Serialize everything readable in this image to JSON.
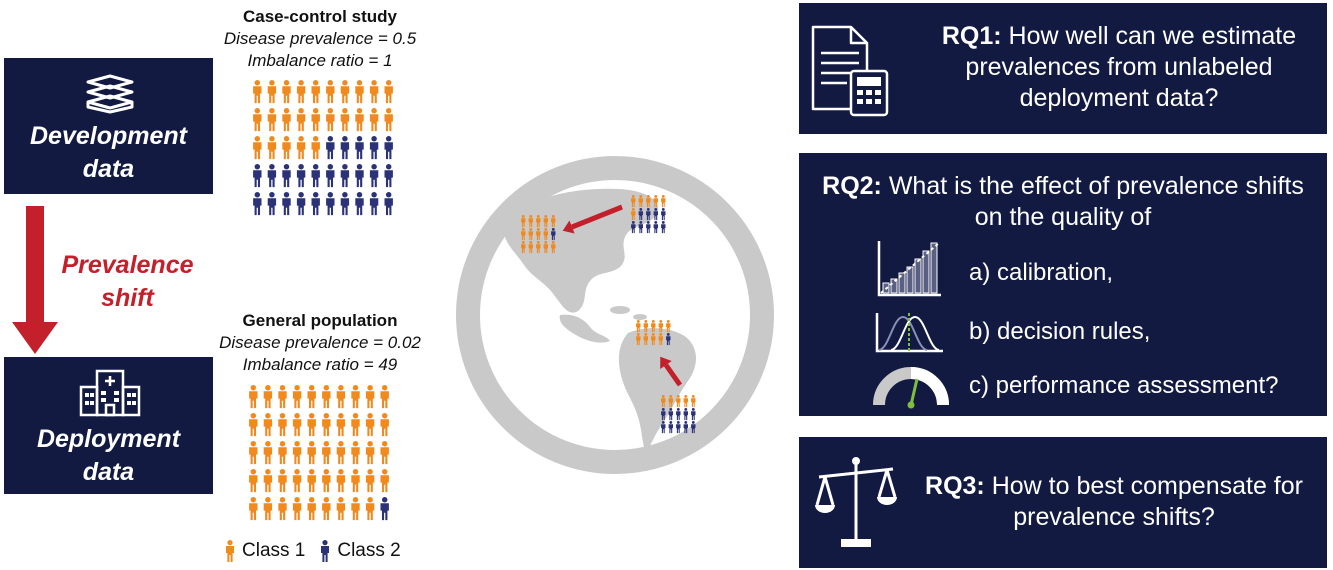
{
  "left": {
    "development_box": {
      "label_line1": "Development",
      "label_line2": "data",
      "icon": "books-icon"
    },
    "shift": {
      "line1": "Prevalence",
      "line2": "shift"
    },
    "deployment_box": {
      "label_line1": "Deployment",
      "label_line2": "data",
      "icon": "hospital-icon"
    }
  },
  "case_control": {
    "title": "Case-control study",
    "prevalence": "Disease prevalence = 0.5",
    "imbalance": "Imbalance ratio = 1",
    "class1_count": 25,
    "class2_count": 25
  },
  "general_population": {
    "title": "General population",
    "prevalence": "Disease prevalence = 0.02",
    "imbalance": "Imbalance ratio = 49",
    "class1_count": 49,
    "class2_count": 1
  },
  "legend": {
    "class1": "Class 1",
    "class2": "Class 2"
  },
  "colors": {
    "navy": "#131a42",
    "class1": "#f08a1e",
    "class2": "#2b3278",
    "red": "#c3202b",
    "globe": "#c9c9c9"
  },
  "rq1": {
    "label": "RQ1:",
    "text_line1": "How well can we estimate",
    "text_line2": "prevalences from unlabeled",
    "text_line3": "deployment data?",
    "icon": "document-calculator-icon"
  },
  "rq2": {
    "label": "RQ2:",
    "text_line1": "What is the effect of prevalence shifts",
    "text_line2": "on the quality of",
    "items": [
      {
        "text": "a) calibration,",
        "icon": "calibration-chart-icon"
      },
      {
        "text": "b) decision rules,",
        "icon": "distribution-threshold-icon"
      },
      {
        "text": "c) performance assessment?",
        "icon": "gauge-icon"
      }
    ]
  },
  "rq3": {
    "label": "RQ3:",
    "text_line1": "How to best compensate for",
    "text_line2": "prevalence shifts?",
    "icon": "scales-icon"
  }
}
